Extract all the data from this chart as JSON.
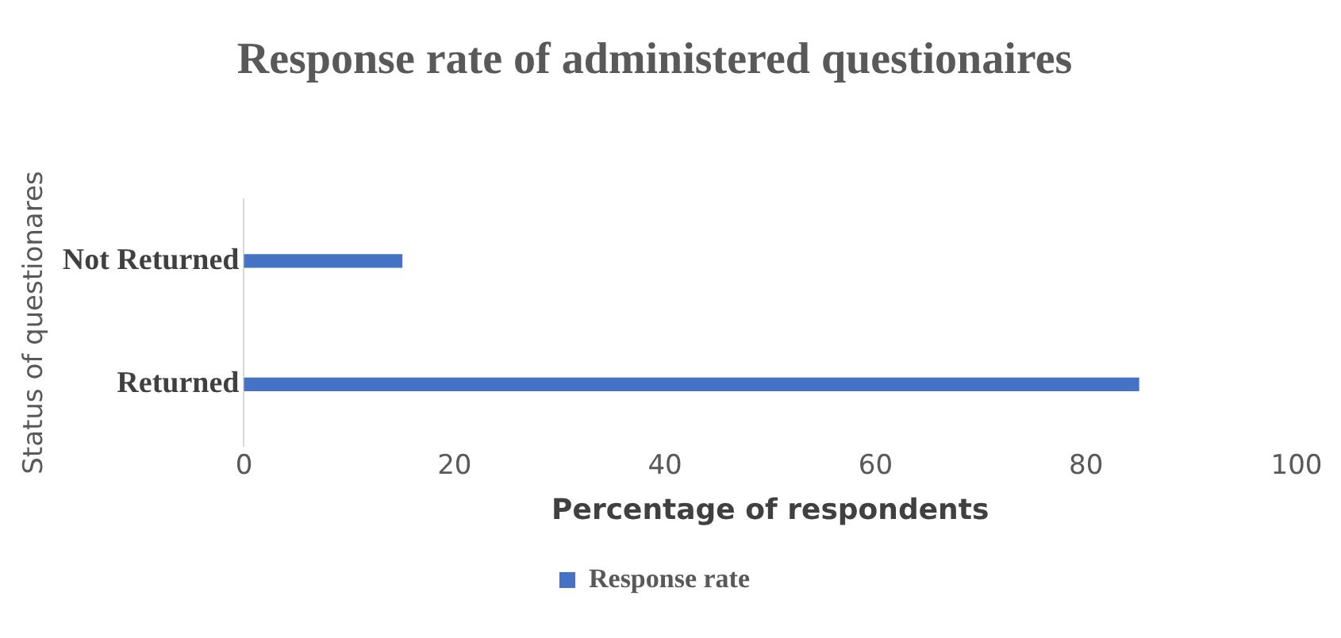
{
  "chart_data": {
    "type": "bar",
    "orientation": "horizontal",
    "title": "Response rate of administered questionaires",
    "xlabel": "Percentage of respondents",
    "ylabel": "Status of questionares",
    "categories": [
      "Not Returned",
      "Returned"
    ],
    "series": [
      {
        "name": "Response rate",
        "color": "#4472c4",
        "values": [
          15,
          85
        ]
      }
    ],
    "xlim": [
      0,
      100
    ],
    "xticks": [
      0,
      20,
      40,
      60,
      80,
      100
    ],
    "grid": false,
    "legend": "bottom"
  }
}
